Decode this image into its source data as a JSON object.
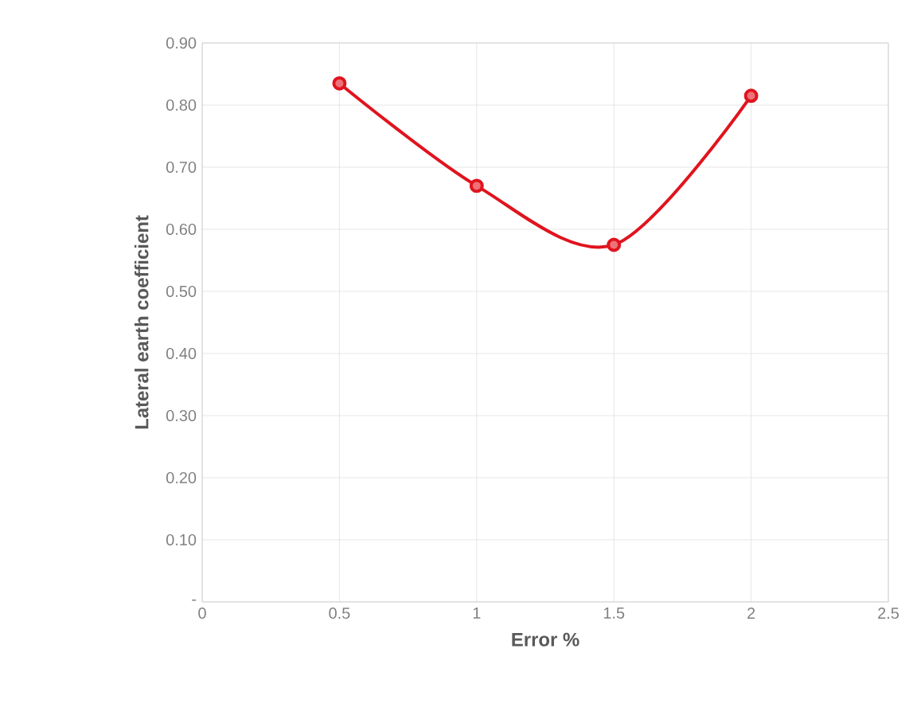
{
  "chart_data": {
    "type": "line",
    "xlabel": "Error %",
    "ylabel": "Lateral earth coefficient",
    "x": [
      0.5,
      1,
      1.5,
      2
    ],
    "series": [
      {
        "color": "#e0141e",
        "values": [
          0.835,
          0.67,
          0.575,
          0.815
        ]
      }
    ],
    "xlim": [
      0,
      2.5
    ],
    "xticks": [
      0,
      0.5,
      1,
      1.5,
      2,
      2.5
    ],
    "ylim": [
      0,
      0.9
    ],
    "yticks": [
      {
        "value": 0,
        "label": "-"
      },
      {
        "value": 0.1,
        "label": "0.10"
      },
      {
        "value": 0.2,
        "label": "0.20"
      },
      {
        "value": 0.3,
        "label": "0.30"
      },
      {
        "value": 0.4,
        "label": "0.40"
      },
      {
        "value": 0.5,
        "label": "0.50"
      },
      {
        "value": 0.6,
        "label": "0.60"
      },
      {
        "value": 0.7,
        "label": "0.70"
      },
      {
        "value": 0.8,
        "label": "0.80"
      },
      {
        "value": 0.9,
        "label": "0.90"
      }
    ],
    "grid": true,
    "marker": "circle",
    "line_style": "solid"
  }
}
